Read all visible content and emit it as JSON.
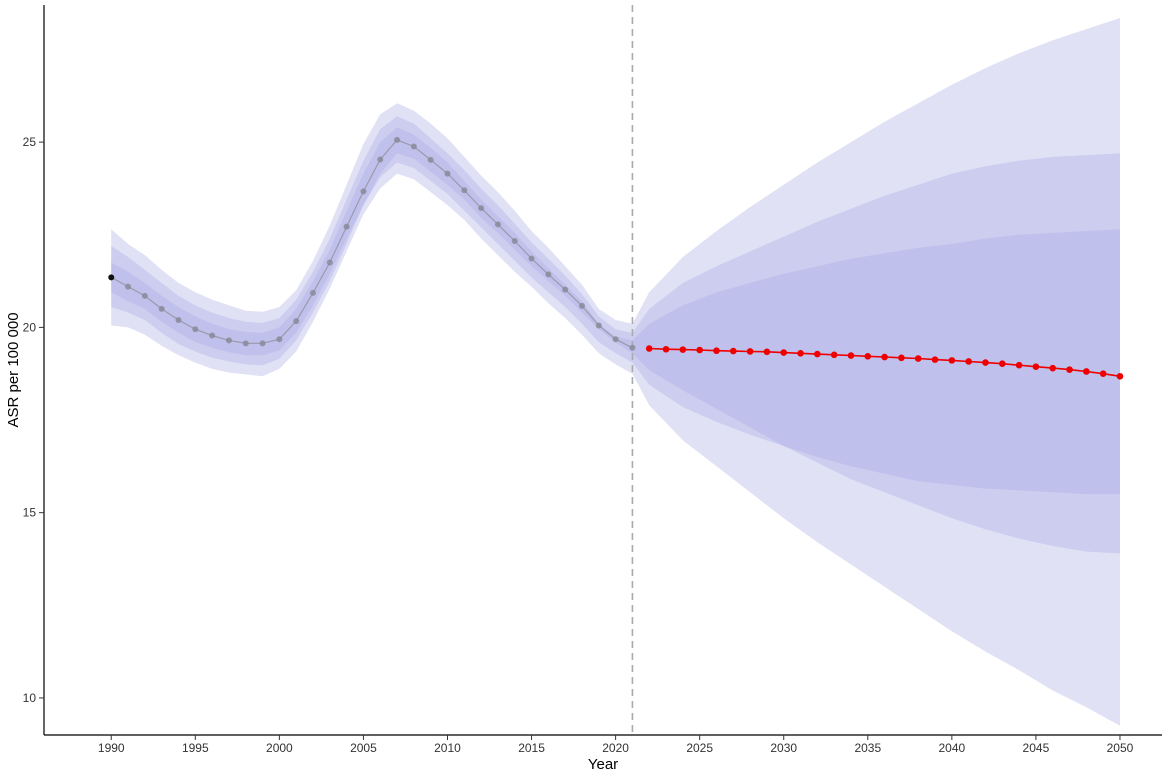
{
  "chart_data": {
    "type": "line",
    "title": "",
    "xlabel": "Year",
    "ylabel": "ASR per 100 000",
    "xlim": [
      1986,
      2052.5
    ],
    "ylim": [
      9.0,
      28.7
    ],
    "x_ticks": [
      1990,
      1995,
      2000,
      2005,
      2010,
      2015,
      2020,
      2025,
      2030,
      2035,
      2040,
      2045,
      2050
    ],
    "y_ticks": [
      10,
      15,
      20,
      25
    ],
    "forecast_start_year": 2021,
    "grid": false,
    "legend": "none",
    "series": [
      {
        "role": "observed",
        "color": "#666677",
        "x": [
          1990,
          1991,
          1992,
          1993,
          1994,
          1995,
          1996,
          1997,
          1998,
          1999,
          2000,
          2001,
          2002,
          2003,
          2004,
          2005,
          2006,
          2007,
          2008,
          2009,
          2010,
          2011,
          2012,
          2013,
          2014,
          2015,
          2016,
          2017,
          2018,
          2019,
          2020,
          2021
        ],
        "y": [
          21.35,
          21.1,
          20.85,
          20.5,
          20.2,
          19.95,
          19.78,
          19.65,
          19.57,
          19.57,
          19.68,
          20.17,
          20.93,
          21.75,
          22.72,
          23.67,
          24.53,
          25.06,
          24.88,
          24.52,
          24.15,
          23.7,
          23.22,
          22.78,
          22.33,
          21.86,
          21.43,
          21.02,
          20.58,
          20.05,
          19.68,
          19.45
        ]
      },
      {
        "role": "predicted",
        "color": "#ee0000",
        "x": [
          2022,
          2023,
          2024,
          2025,
          2026,
          2027,
          2028,
          2029,
          2030,
          2031,
          2032,
          2033,
          2034,
          2035,
          2036,
          2037,
          2038,
          2039,
          2040,
          2041,
          2042,
          2043,
          2044,
          2045,
          2046,
          2047,
          2048,
          2049,
          2050
        ],
        "y": [
          19.43,
          19.41,
          19.4,
          19.39,
          19.37,
          19.36,
          19.35,
          19.34,
          19.32,
          19.3,
          19.28,
          19.26,
          19.24,
          19.22,
          19.2,
          19.18,
          19.16,
          19.13,
          19.11,
          19.08,
          19.05,
          19.02,
          18.98,
          18.94,
          18.9,
          18.86,
          18.81,
          18.75,
          18.68
        ]
      }
    ],
    "bands": {
      "color": "#aaaae6",
      "x": [
        1990,
        1991,
        1992,
        1993,
        1994,
        1995,
        1996,
        1997,
        1998,
        1999,
        2000,
        2001,
        2002,
        2003,
        2004,
        2005,
        2006,
        2007,
        2008,
        2009,
        2010,
        2011,
        2012,
        2013,
        2014,
        2015,
        2016,
        2017,
        2018,
        2019,
        2020,
        2021,
        2022,
        2024,
        2026,
        2028,
        2030,
        2032,
        2034,
        2036,
        2038,
        2040,
        2042,
        2044,
        2046,
        2048,
        2050
      ],
      "outer_upper": [
        22.65,
        22.25,
        21.95,
        21.55,
        21.2,
        20.95,
        20.75,
        20.6,
        20.45,
        20.42,
        20.55,
        21.0,
        21.8,
        22.75,
        23.85,
        24.95,
        25.75,
        26.05,
        25.85,
        25.5,
        25.1,
        24.6,
        24.1,
        23.65,
        23.15,
        22.6,
        22.15,
        21.65,
        21.15,
        20.5,
        20.2,
        20.1,
        20.95,
        21.9,
        22.6,
        23.25,
        23.85,
        24.45,
        25.0,
        25.55,
        26.05,
        26.55,
        27.0,
        27.4,
        27.75,
        28.05,
        28.35
      ],
      "outer_lower": [
        20.05,
        20.0,
        19.8,
        19.5,
        19.25,
        19.05,
        18.88,
        18.78,
        18.73,
        18.68,
        18.88,
        19.35,
        20.15,
        21.05,
        22.05,
        23.05,
        23.75,
        24.15,
        24.0,
        23.65,
        23.3,
        22.9,
        22.4,
        21.95,
        21.5,
        21.1,
        20.65,
        20.25,
        19.8,
        19.3,
        19.0,
        18.75,
        17.9,
        16.95,
        16.25,
        15.55,
        14.85,
        14.2,
        13.6,
        13.0,
        12.4,
        11.8,
        11.25,
        10.75,
        10.2,
        9.75,
        9.25
      ],
      "mid_upper": [
        22.2,
        21.9,
        21.55,
        21.2,
        20.85,
        20.6,
        20.4,
        20.25,
        20.15,
        20.12,
        20.25,
        20.75,
        21.5,
        22.4,
        23.45,
        24.5,
        25.35,
        25.7,
        25.5,
        25.1,
        24.7,
        24.25,
        23.75,
        23.3,
        22.8,
        22.3,
        21.85,
        21.4,
        20.9,
        20.3,
        19.95,
        19.85,
        20.5,
        21.2,
        21.65,
        22.05,
        22.45,
        22.85,
        23.2,
        23.55,
        23.85,
        24.15,
        24.35,
        24.5,
        24.6,
        24.65,
        24.7
      ],
      "mid_lower": [
        20.55,
        20.4,
        20.2,
        19.85,
        19.55,
        19.35,
        19.18,
        19.08,
        19.0,
        18.98,
        19.15,
        19.65,
        20.4,
        21.25,
        22.25,
        23.3,
        24.05,
        24.45,
        24.3,
        23.95,
        23.6,
        23.15,
        22.7,
        22.25,
        21.8,
        21.35,
        20.95,
        20.55,
        20.1,
        19.6,
        19.3,
        19.05,
        18.45,
        17.85,
        17.45,
        17.1,
        16.8,
        16.5,
        16.25,
        16.05,
        15.85,
        15.75,
        15.65,
        15.6,
        15.55,
        15.5,
        15.5
      ],
      "inner_upper": [
        21.75,
        21.5,
        21.2,
        20.85,
        20.55,
        20.3,
        20.1,
        19.95,
        19.88,
        19.85,
        20.0,
        20.5,
        21.25,
        22.1,
        23.15,
        24.15,
        25.0,
        25.4,
        25.2,
        24.85,
        24.45,
        23.95,
        23.45,
        23.0,
        22.55,
        22.05,
        21.6,
        21.15,
        20.7,
        20.1,
        19.75,
        19.65,
        20.1,
        20.6,
        20.95,
        21.2,
        21.45,
        21.65,
        21.85,
        22.0,
        22.15,
        22.25,
        22.4,
        22.5,
        22.55,
        22.6,
        22.65
      ],
      "inner_lower": [
        20.95,
        20.7,
        20.5,
        20.15,
        19.85,
        19.6,
        19.45,
        19.33,
        19.25,
        19.25,
        19.38,
        19.85,
        20.6,
        21.45,
        22.4,
        23.3,
        24.15,
        24.7,
        24.55,
        24.2,
        23.85,
        23.45,
        22.95,
        22.55,
        22.1,
        21.65,
        21.25,
        20.85,
        20.4,
        19.95,
        19.6,
        19.3,
        18.85,
        18.3,
        17.8,
        17.3,
        16.8,
        16.35,
        15.9,
        15.55,
        15.2,
        14.85,
        14.55,
        14.3,
        14.1,
        13.95,
        13.9
      ]
    }
  }
}
